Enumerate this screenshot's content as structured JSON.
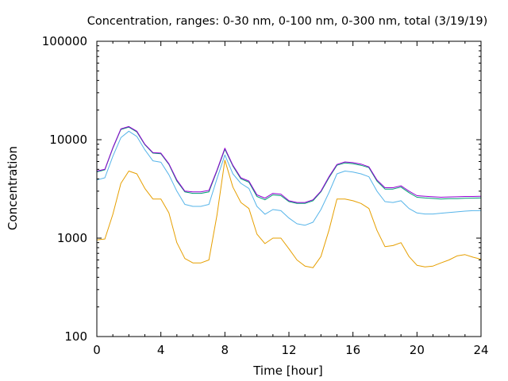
{
  "chart_data": {
    "type": "line",
    "title": "Concentration, ranges: 0-30 nm, 0-100 nm, 0-300 nm, total (3/19/19)",
    "xlabel": "Time [hour]",
    "ylabel": "Concentration",
    "xlim": [
      0,
      24
    ],
    "ylim": [
      100,
      100000
    ],
    "yscale": "log",
    "x_ticks": [
      0,
      4,
      8,
      12,
      16,
      20,
      24
    ],
    "x_tick_labels": [
      "0",
      "4",
      "8",
      "12",
      "16",
      "20",
      "24"
    ],
    "y_ticks": [
      100,
      1000,
      10000,
      100000
    ],
    "y_tick_labels": [
      "100",
      "1000",
      "10000",
      "100000"
    ],
    "grid": false,
    "legend": "none",
    "x": [
      0,
      0.5,
      1,
      1.5,
      2,
      2.5,
      3,
      3.5,
      4,
      4.5,
      5,
      5.5,
      6,
      6.5,
      7,
      7.5,
      8,
      8.5,
      9,
      9.5,
      10,
      10.5,
      11,
      11.5,
      12,
      12.5,
      13,
      13.5,
      14,
      14.5,
      15,
      15.5,
      16,
      16.5,
      17,
      17.5,
      18,
      18.5,
      19,
      19.5,
      20,
      20.5,
      21,
      21.5,
      22,
      22.5,
      23,
      23.5,
      24
    ],
    "series": [
      {
        "color": "#e69f00",
        "values": [
          960,
          980,
          1750,
          3600,
          4800,
          4500,
          3200,
          2500,
          2500,
          1800,
          900,
          620,
          560,
          560,
          600,
          1700,
          6200,
          3300,
          2300,
          2000,
          1100,
          880,
          1000,
          1000,
          780,
          600,
          520,
          500,
          650,
          1200,
          2500,
          2500,
          2400,
          2250,
          2000,
          1200,
          820,
          840,
          900,
          650,
          530,
          510,
          520,
          560,
          600,
          660,
          680,
          640,
          610
        ]
      },
      {
        "color": "#56b4e9",
        "values": [
          3900,
          4100,
          6800,
          10500,
          12200,
          10800,
          7900,
          6100,
          5900,
          4400,
          3000,
          2200,
          2100,
          2100,
          2200,
          4000,
          7000,
          4500,
          3600,
          3200,
          2100,
          1750,
          1950,
          1900,
          1600,
          1400,
          1350,
          1450,
          1950,
          2900,
          4500,
          4800,
          4700,
          4500,
          4200,
          3000,
          2350,
          2300,
          2400,
          2000,
          1800,
          1760,
          1760,
          1790,
          1820,
          1850,
          1880,
          1900,
          1900
        ]
      },
      {
        "color": "#009e73",
        "values": [
          4700,
          4950,
          8200,
          12700,
          13400,
          12000,
          8900,
          7300,
          7200,
          5600,
          3800,
          2950,
          2850,
          2850,
          2950,
          4800,
          8000,
          5400,
          4000,
          3700,
          2650,
          2450,
          2750,
          2700,
          2350,
          2250,
          2250,
          2400,
          2950,
          4100,
          5500,
          5800,
          5700,
          5500,
          5200,
          3800,
          3150,
          3150,
          3300,
          2900,
          2600,
          2560,
          2530,
          2500,
          2520,
          2520,
          2540,
          2550,
          2560
        ]
      },
      {
        "color": "#9400d3",
        "values": [
          4800,
          5000,
          8300,
          12900,
          13600,
          12200,
          9000,
          7400,
          7300,
          5700,
          3900,
          3000,
          2950,
          2950,
          3050,
          4900,
          8200,
          5500,
          4100,
          3800,
          2750,
          2550,
          2850,
          2800,
          2400,
          2300,
          2300,
          2450,
          3000,
          4200,
          5600,
          5950,
          5850,
          5650,
          5300,
          3900,
          3250,
          3250,
          3400,
          3000,
          2700,
          2660,
          2630,
          2600,
          2620,
          2630,
          2650,
          2650,
          2660
        ]
      }
    ]
  }
}
